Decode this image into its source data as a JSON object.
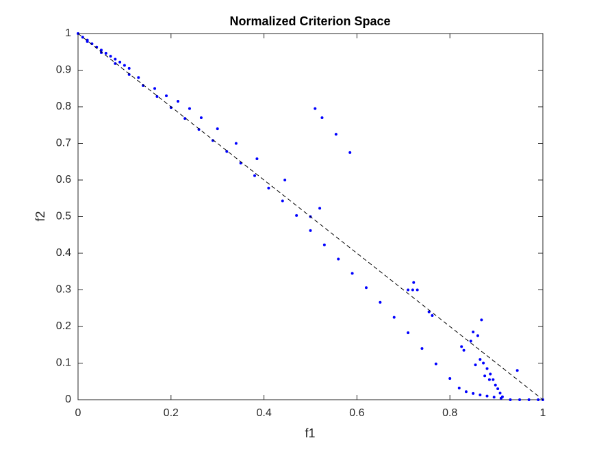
{
  "chart_data": {
    "type": "scatter",
    "title": "Normalized Criterion Space",
    "xlabel": "f1",
    "ylabel": "f2",
    "xlim": [
      0,
      1
    ],
    "ylim": [
      0,
      1
    ],
    "xticks": [
      0,
      0.2,
      0.4,
      0.6,
      0.8,
      1
    ],
    "yticks": [
      0,
      0.1,
      0.2,
      0.3,
      0.4,
      0.5,
      0.6,
      0.7,
      0.8,
      0.9,
      1
    ],
    "series": [
      {
        "type": "scatter",
        "color": "#0000ff",
        "x": [
          0,
          0.01,
          0.02,
          0.03,
          0.04,
          0.05,
          0.06,
          0.07,
          0.08,
          0.09,
          0.1,
          0.11,
          0.13,
          0.165,
          0.19,
          0.215,
          0.24,
          0.265,
          0.3,
          0.34,
          0.385,
          0.445,
          0.5,
          0.52,
          0.51,
          0.525,
          0.555,
          0.585,
          0.02,
          0.05,
          0.08,
          0.11,
          0.14,
          0.17,
          0.2,
          0.23,
          0.26,
          0.29,
          0.32,
          0.35,
          0.38,
          0.41,
          0.44,
          0.47,
          0.5,
          0.53,
          0.56,
          0.59,
          0.62,
          0.65,
          0.68,
          0.71,
          0.74,
          0.77,
          0.8,
          0.82,
          0.835,
          0.85,
          0.865,
          0.88,
          0.895,
          0.91,
          0.865,
          0.872,
          0.88,
          0.887,
          0.893,
          0.898,
          0.903,
          0.908,
          0.913,
          0.93,
          0.95,
          0.97,
          0.99,
          1,
          0.71,
          0.72,
          0.73,
          0.722,
          0.755,
          0.762,
          0.825,
          0.83,
          0.845,
          0.85,
          0.86,
          0.868,
          0.855,
          0.875,
          0.885,
          0.945
        ],
        "values": [
          1,
          0.99,
          0.982,
          0.972,
          0.963,
          0.955,
          0.946,
          0.938,
          0.93,
          0.922,
          0.913,
          0.905,
          0.88,
          0.85,
          0.83,
          0.815,
          0.795,
          0.77,
          0.74,
          0.7,
          0.658,
          0.6,
          0.5,
          0.523,
          0.795,
          0.77,
          0.725,
          0.675,
          0.978,
          0.948,
          0.918,
          0.888,
          0.858,
          0.828,
          0.798,
          0.768,
          0.738,
          0.708,
          0.678,
          0.646,
          0.612,
          0.578,
          0.543,
          0.503,
          0.462,
          0.423,
          0.384,
          0.345,
          0.306,
          0.266,
          0.225,
          0.183,
          0.14,
          0.098,
          0.058,
          0.032,
          0.022,
          0.017,
          0.013,
          0.01,
          0.007,
          0.004,
          0.11,
          0.1,
          0.085,
          0.07,
          0.055,
          0.04,
          0.03,
          0.018,
          0.008,
          0,
          0,
          0,
          0,
          0,
          0.3,
          0.3,
          0.3,
          0.32,
          0.24,
          0.23,
          0.145,
          0.135,
          0.16,
          0.185,
          0.175,
          0.218,
          0.095,
          0.065,
          0.055,
          0.08
        ]
      },
      {
        "type": "line",
        "color": "#000000",
        "dashed": true,
        "x": [
          0,
          1
        ],
        "values": [
          1,
          0
        ]
      }
    ]
  }
}
